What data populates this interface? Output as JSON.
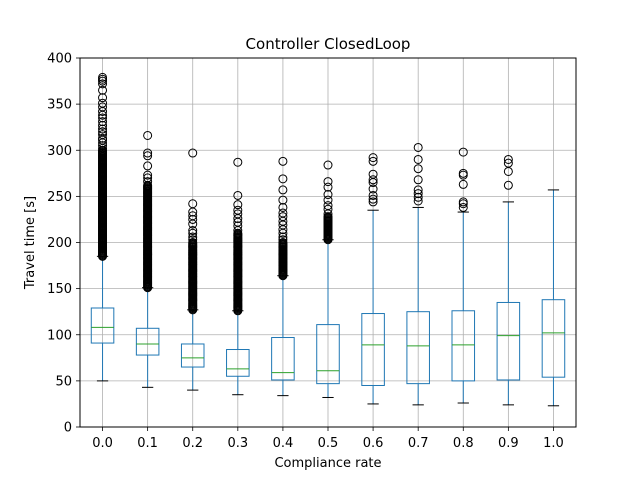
{
  "chart_data": {
    "type": "box",
    "title": "Controller ClosedLoop",
    "xlabel": "Compliance rate",
    "ylabel": "Travel time [s]",
    "ylim": [
      0,
      400
    ],
    "yticks": [
      0,
      50,
      100,
      150,
      200,
      250,
      300,
      350,
      400
    ],
    "grid": true,
    "colors": {
      "box": "#1f77b4",
      "median": "#2ca02c",
      "whisker": "#000000",
      "flier": "#000000",
      "grid": "#b0b0b0"
    },
    "categories": [
      "0.0",
      "0.1",
      "0.2",
      "0.3",
      "0.4",
      "0.5",
      "0.6",
      "0.7",
      "0.8",
      "0.9",
      "1.0"
    ],
    "boxes": [
      {
        "category": "0.0",
        "whislo": 50,
        "q1": 91,
        "median": 108,
        "q3": 129,
        "whishi": 185,
        "fliers_dense": [
          185,
          300
        ],
        "fliers": [
          302,
          305,
          308,
          311,
          313,
          317,
          320,
          323,
          327,
          331,
          335,
          338,
          342,
          347,
          351,
          357,
          365,
          372,
          375,
          377,
          379
        ]
      },
      {
        "category": "0.1",
        "whislo": 43,
        "q1": 78,
        "median": 90,
        "q3": 107,
        "whishi": 151,
        "fliers_dense": [
          151,
          262
        ],
        "fliers": [
          266,
          270,
          273,
          283,
          294,
          297,
          316
        ]
      },
      {
        "category": "0.2",
        "whislo": 40,
        "q1": 65,
        "median": 75,
        "q3": 90,
        "whishi": 127,
        "fliers_dense": [
          127,
          200
        ],
        "fliers": [
          203,
          206,
          210,
          213,
          220,
          225,
          229,
          233,
          242,
          297
        ]
      },
      {
        "category": "0.3",
        "whislo": 35,
        "q1": 55,
        "median": 63,
        "q3": 84,
        "whishi": 126,
        "fliers_dense": [
          126,
          210
        ],
        "fliers": [
          213,
          218,
          222,
          226,
          231,
          235,
          241,
          251,
          287
        ]
      },
      {
        "category": "0.4",
        "whislo": 34,
        "q1": 51,
        "median": 59,
        "q3": 97,
        "whishi": 164,
        "fliers_dense": [
          164,
          200
        ],
        "fliers": [
          203,
          206,
          210,
          214,
          219,
          223,
          228,
          232,
          238,
          246,
          257,
          269,
          288
        ]
      },
      {
        "category": "0.5",
        "whislo": 32,
        "q1": 47,
        "median": 61,
        "q3": 111,
        "whishi": 203,
        "fliers_dense": [
          203,
          228
        ],
        "fliers": [
          231,
          236,
          240,
          246,
          252,
          260,
          266,
          284
        ]
      },
      {
        "category": "0.6",
        "whislo": 25,
        "q1": 45,
        "median": 89,
        "q3": 123,
        "whishi": 235,
        "fliers_dense": [],
        "fliers": [
          244,
          247,
          251,
          258,
          265,
          268,
          274,
          288,
          292
        ]
      },
      {
        "category": "0.7",
        "whislo": 24,
        "q1": 47,
        "median": 88,
        "q3": 125,
        "whishi": 238,
        "fliers_dense": [],
        "fliers": [
          245,
          249,
          253,
          257,
          268,
          280,
          290,
          303
        ]
      },
      {
        "category": "0.8",
        "whislo": 26,
        "q1": 50,
        "median": 89,
        "q3": 126,
        "whishi": 233,
        "fliers_dense": [],
        "fliers": [
          238,
          242,
          244,
          263,
          273,
          275,
          298
        ]
      },
      {
        "category": "0.9",
        "whislo": 24,
        "q1": 51,
        "median": 99,
        "q3": 135,
        "whishi": 244,
        "fliers_dense": [],
        "fliers": [
          262,
          277,
          286,
          290
        ]
      },
      {
        "category": "1.0",
        "whislo": 23,
        "q1": 54,
        "median": 102,
        "q3": 138,
        "whishi": 257,
        "fliers_dense": [],
        "fliers": []
      }
    ]
  }
}
